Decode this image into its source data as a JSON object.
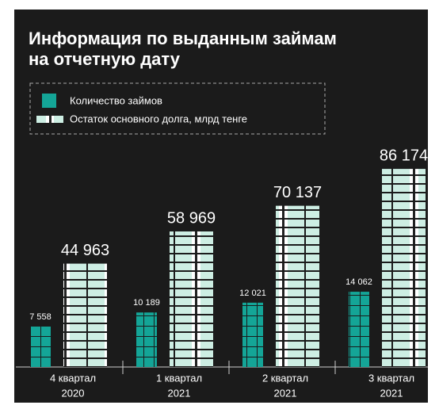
{
  "chart_data": {
    "type": "bar",
    "title": [
      "Информация по выданным займам",
      "на отчетную дату"
    ],
    "categories": [
      [
        "4 квартал",
        "2020"
      ],
      [
        "1 квартал",
        "2021"
      ],
      [
        "2 квартал",
        "2021"
      ],
      [
        "3 квартал",
        "2021"
      ]
    ],
    "series": [
      {
        "name": "Количество займов",
        "color": "#14a597",
        "values": [
          7558,
          10189,
          12021,
          14062
        ],
        "value_labels": [
          "7 558",
          "10 189",
          "12 021",
          "14 062"
        ]
      },
      {
        "name": "Остаток основного долга, млрд тенге",
        "color": "#cdeee3",
        "values": [
          44963,
          58969,
          70137,
          86174
        ],
        "value_labels": [
          "44 963",
          "58 969",
          "70 137",
          "86 174"
        ]
      }
    ]
  }
}
